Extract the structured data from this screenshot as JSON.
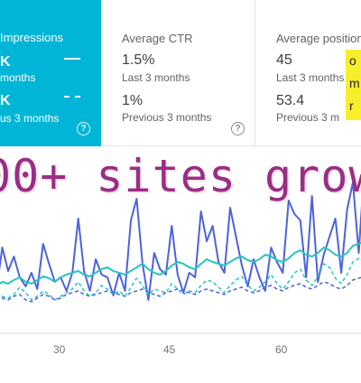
{
  "cards": {
    "impressions": {
      "label": "Impressions",
      "value_current": "K",
      "period_current": "months",
      "value_previous": "K",
      "period_previous": "us 3 months"
    },
    "ctr": {
      "label": "Average CTR",
      "value_current": "1.5%",
      "period_current": "Last 3 months",
      "value_previous": "1%",
      "period_previous": "Previous 3 months"
    },
    "position": {
      "label": "Average position",
      "value_current": "45",
      "period_current": "Last 3 months",
      "value_previous": "53.4",
      "period_previous": "Previous 3 m"
    }
  },
  "highlight_lines": [
    "o",
    "m",
    "r"
  ],
  "overlay_text": "00+ sites grow",
  "colors": {
    "impressions_card": "#00b5d6",
    "clicks_line": "#4d63d9",
    "impressions_line": "#27c4c4",
    "overlay_text": "#9c2d84",
    "highlight": "#f8ef2a"
  },
  "chart_data": {
    "type": "line",
    "x_ticks": [
      "30",
      "45",
      "60"
    ],
    "series": [
      {
        "values": [
          40,
          88,
          62,
          78,
          55,
          45,
          60,
          42,
          92,
          70,
          50,
          55,
          40,
          60,
          120,
          62,
          40,
          75,
          58,
          55,
          35,
          60,
          40,
          118,
          142,
          70,
          30,
          82,
          64,
          58,
          112,
          58,
          38,
          60,
          55,
          128,
          95,
          112,
          72,
          60,
          132,
          100,
          68,
          45,
          75,
          55,
          40,
          88,
          72,
          60,
          140,
          125,
          118,
          55,
          145,
          50,
          80,
          100,
          120,
          60,
          130,
          160,
          82,
          180
        ]
      },
      {
        "values": [
          45,
          50,
          48,
          52,
          55,
          50,
          48,
          52,
          56,
          54,
          50,
          55,
          58,
          60,
          62,
          58,
          56,
          60,
          64,
          66,
          62,
          60,
          58,
          62,
          66,
          70,
          64,
          60,
          58,
          62,
          68,
          72,
          70,
          66,
          64,
          70,
          75,
          72,
          70,
          68,
          72,
          76,
          78,
          74,
          72,
          75,
          80,
          78,
          74,
          72,
          76,
          82,
          85,
          80,
          78,
          82,
          88,
          85,
          80,
          78,
          82,
          90,
          92,
          95
        ]
      },
      {
        "values": [
          28,
          32,
          30,
          34,
          36,
          30,
          28,
          32,
          36,
          34,
          30,
          32,
          36,
          38,
          40,
          36,
          34,
          36,
          38,
          40,
          38,
          36,
          34,
          38,
          40,
          42,
          38,
          36,
          34,
          38,
          40,
          42,
          40,
          38,
          36,
          40,
          42,
          40,
          38,
          36,
          40,
          42,
          44,
          40,
          38,
          40,
          44,
          46,
          42,
          40,
          44,
          46,
          48,
          44,
          42,
          46,
          50,
          48,
          44,
          42,
          46,
          52,
          54,
          56
        ]
      },
      {
        "values": [
          30,
          34,
          32,
          36,
          44,
          38,
          30,
          34,
          40,
          36,
          30,
          34,
          38,
          42,
          50,
          40,
          34,
          38,
          46,
          42,
          36,
          40,
          34,
          44,
          54,
          46,
          36,
          42,
          40,
          38,
          48,
          42,
          36,
          40,
          38,
          46,
          52,
          50,
          44,
          38,
          46,
          52,
          56,
          46,
          40,
          44,
          50,
          58,
          48,
          42,
          50,
          60,
          64,
          52,
          46,
          56,
          70,
          66,
          54,
          48,
          58,
          72,
          76,
          82
        ]
      }
    ]
  }
}
